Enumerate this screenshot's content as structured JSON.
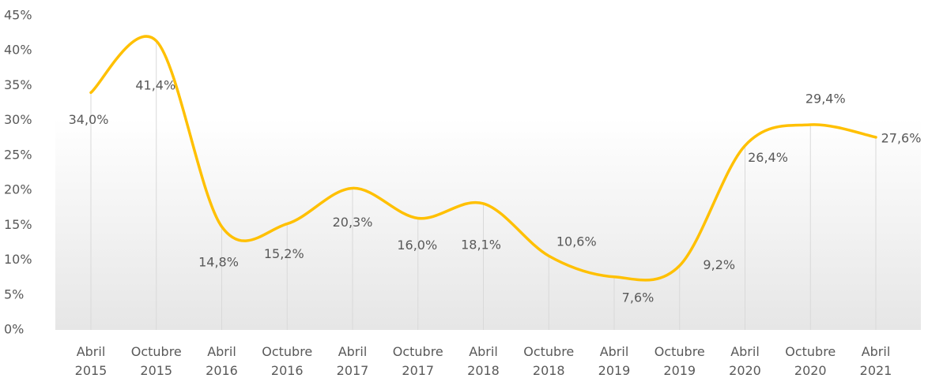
{
  "chart_data": {
    "type": "line",
    "smooth": true,
    "color": "#ffc000",
    "categories": [
      "Abril 2015",
      "Octubre 2015",
      "Abril 2016",
      "Octubre 2016",
      "Abril 2017",
      "Octubre 2017",
      "Abril 2018",
      "Octubre 2018",
      "Abril 2019",
      "Octubre 2019",
      "Abril 2020",
      "Octubre 2020",
      "Abril 2021"
    ],
    "values": [
      34.0,
      41.4,
      14.8,
      15.2,
      20.3,
      16.0,
      18.1,
      10.6,
      7.6,
      9.2,
      26.4,
      29.4,
      27.6
    ],
    "value_labels": [
      "34,0%",
      "41,4%",
      "14,8%",
      "15,2%",
      "20,3%",
      "16,0%",
      "18,1%",
      "10,6%",
      "7,6%",
      "9,2%",
      "26,4%",
      "29,4%",
      "27,6%"
    ],
    "ylim": [
      0,
      45
    ],
    "yticks": [
      {
        "value": 0,
        "label": "0%"
      },
      {
        "value": 5,
        "label": "5%"
      },
      {
        "value": 10,
        "label": "10%"
      },
      {
        "value": 15,
        "label": "15%"
      },
      {
        "value": 20,
        "label": "20%"
      },
      {
        "value": 25,
        "label": "25%"
      },
      {
        "value": 30,
        "label": "30%"
      },
      {
        "value": 35,
        "label": "35%"
      },
      {
        "value": 40,
        "label": "40%"
      },
      {
        "value": 45,
        "label": "45%"
      }
    ]
  }
}
